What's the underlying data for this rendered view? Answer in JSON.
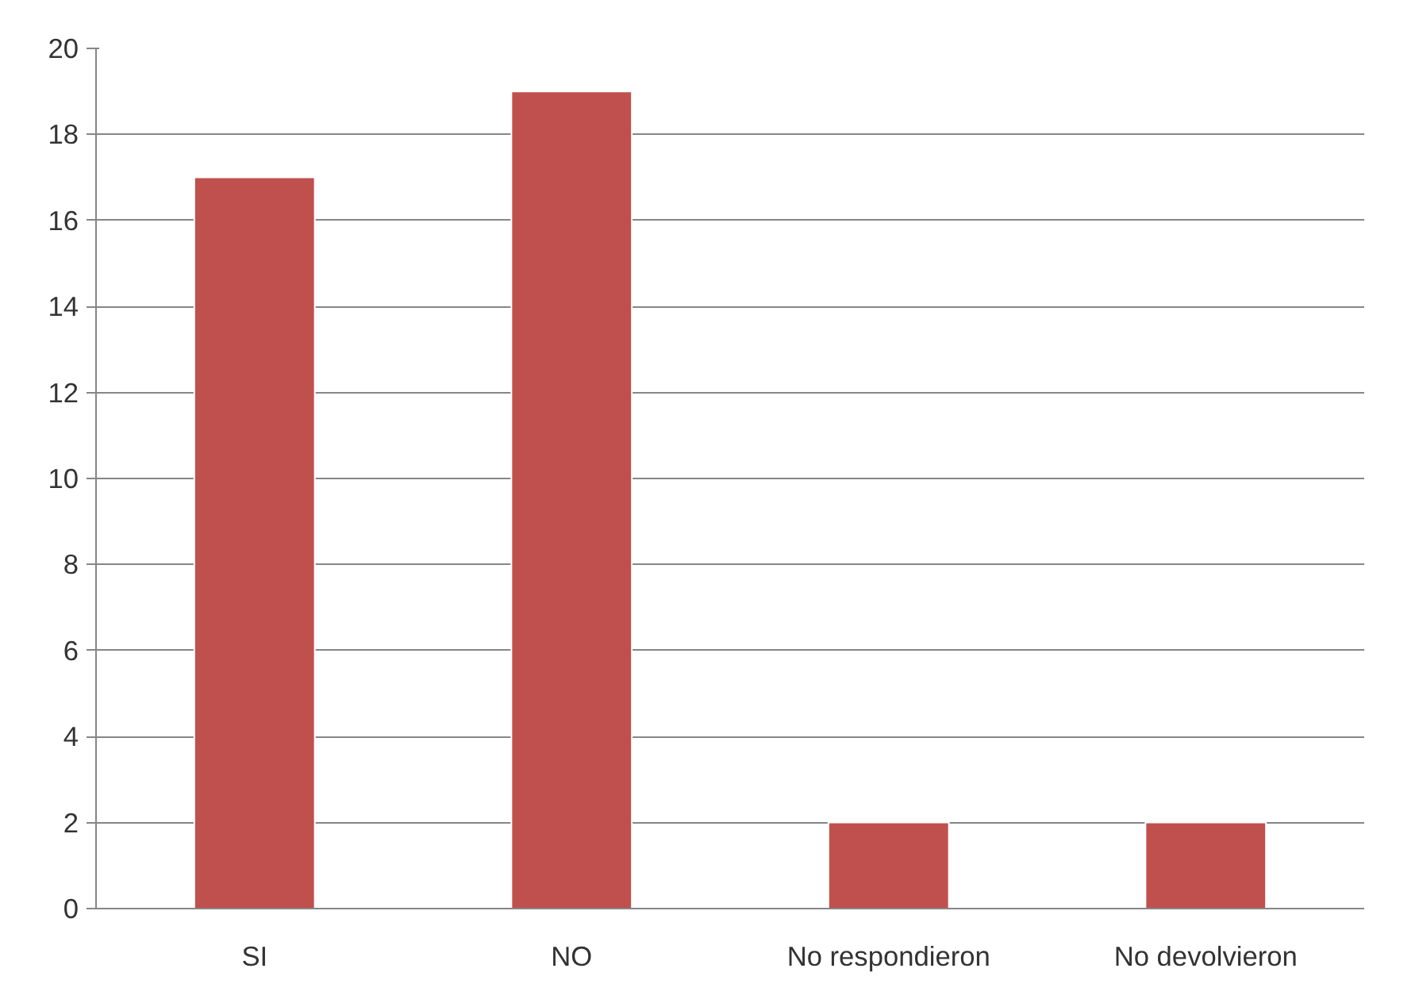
{
  "chart_data": {
    "type": "bar",
    "categories": [
      "SI",
      "NO",
      "No respondieron",
      "No devolvieron"
    ],
    "values": [
      17,
      19,
      2,
      2
    ],
    "color": "#c0504d",
    "ylim": [
      0,
      20
    ],
    "yticks": [
      0,
      2,
      4,
      6,
      8,
      10,
      12,
      14,
      16,
      18,
      20
    ],
    "grid": "y"
  }
}
